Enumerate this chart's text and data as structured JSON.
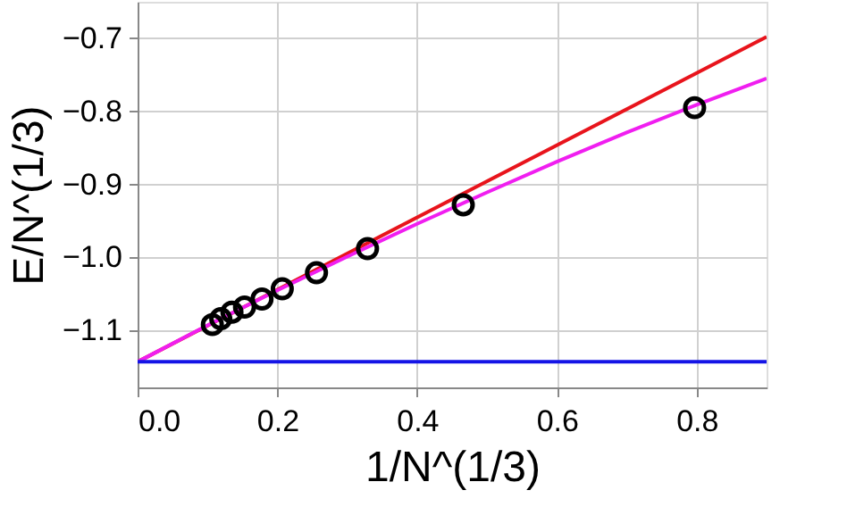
{
  "chart_data": {
    "type": "line",
    "xlabel": "1/N^(1/3)",
    "ylabel": "E/N^(1/3)",
    "xlim": [
      0,
      0.9
    ],
    "xticks": [
      {
        "value": 0,
        "label": "0.0"
      },
      0.2,
      0.4,
      0.6,
      0.8
    ],
    "ylim": [
      -1.178,
      -0.65
    ],
    "yticks": [
      {
        "value": -1.1,
        "label": "−1.1"
      },
      {
        "value": -1.0,
        "label": "−1.0"
      },
      {
        "value": -0.9,
        "label": "−0.9"
      },
      {
        "value": -0.8,
        "label": "−0.8"
      },
      {
        "value": -0.7,
        "label": "−0.7"
      }
    ],
    "grid": true,
    "series": [
      {
        "color": "#e8141c",
        "line_style": "solid",
        "x": [
          0,
          0.9
        ],
        "values": [
          -1.143,
          -0.698
        ]
      },
      {
        "color": "#f01ef0",
        "line_style": "solid",
        "x": [
          0,
          0.1,
          0.2,
          0.3,
          0.4,
          0.5,
          0.6,
          0.7,
          0.8,
          0.9
        ],
        "values": [
          -1.143,
          -1.093,
          -1.045,
          -0.999,
          -0.954,
          -0.911,
          -0.869,
          -0.829,
          -0.791,
          -0.755
        ]
      },
      {
        "type": "scatter",
        "color": "#000000",
        "marker": "circle",
        "x": [
          0.797,
          0.466,
          0.329,
          0.256,
          0.207,
          0.178,
          0.153,
          0.135,
          0.119,
          0.107
        ],
        "values": [
          -0.795,
          -0.928,
          -0.988,
          -1.021,
          -1.043,
          -1.057,
          -1.068,
          -1.075,
          -1.084,
          -1.092
        ]
      }
    ],
    "ref_lines": [
      {
        "axis": "y",
        "value": -1.143,
        "color": "#1414e6",
        "line_style": "solid"
      }
    ]
  }
}
